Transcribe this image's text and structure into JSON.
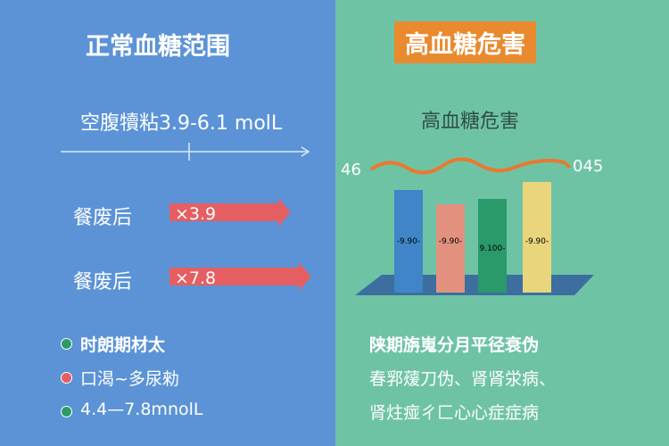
{
  "left": {
    "title": "正常血糖范围",
    "fasting": "空腹犢粘3.9-6.1 molL",
    "rows": [
      {
        "label": "餐废后",
        "value": "×3.9"
      },
      {
        "label": "餐废后",
        "value": "×7.8"
      }
    ],
    "bullets": [
      "时朗期材太",
      "口渴~多尿勑",
      "4.4—7.8mnolL"
    ]
  },
  "right": {
    "badge": "高血糖危害",
    "subtitle": "高血糖危害",
    "wave_labels": [
      "46",
      "045"
    ],
    "bar_labels": [
      "-9.90-",
      "-9.90-",
      "9.100-",
      "-9.90-"
    ],
    "lines": [
      "陕期旃嵬分月平径衰伪",
      "春郛蕿刀伪、肾肾泶病、",
      "肾炷痖ㄔ匚心心症症病"
    ]
  }
}
